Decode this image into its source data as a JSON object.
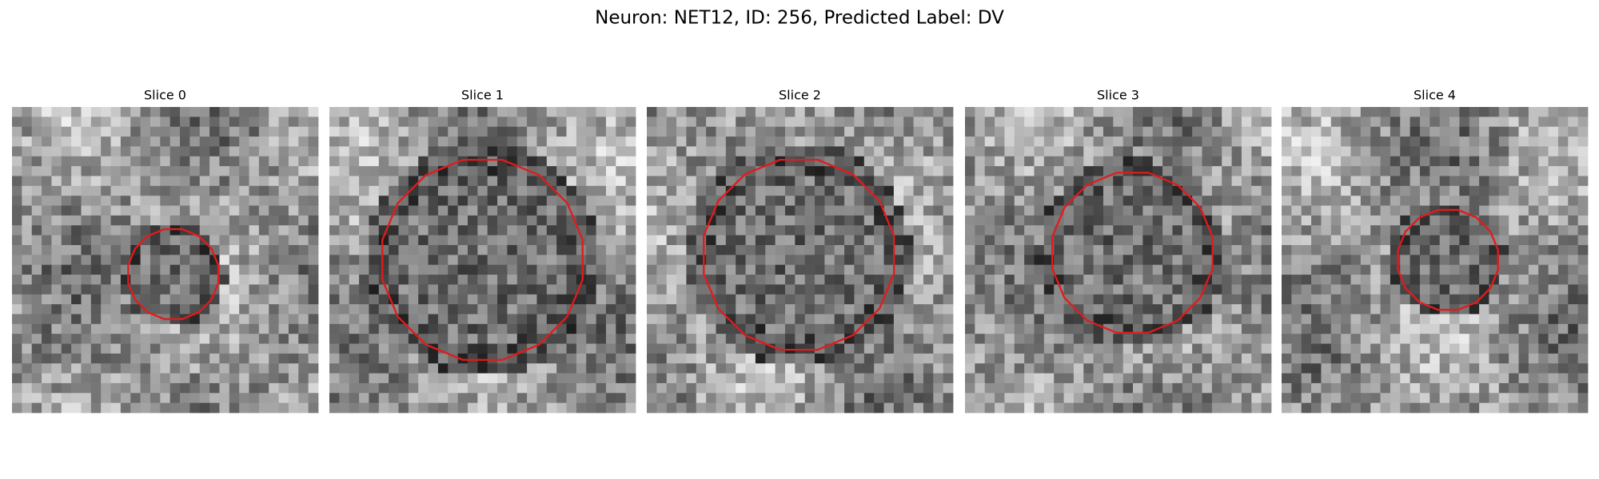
{
  "figure": {
    "title": "Neuron: NET12, ID: 256, Predicted Label: DV",
    "panels": [
      {
        "title": "Slice 0"
      },
      {
        "title": "Slice 1"
      },
      {
        "title": "Slice 2"
      },
      {
        "title": "Slice 3"
      },
      {
        "title": "Slice 4"
      }
    ]
  }
}
